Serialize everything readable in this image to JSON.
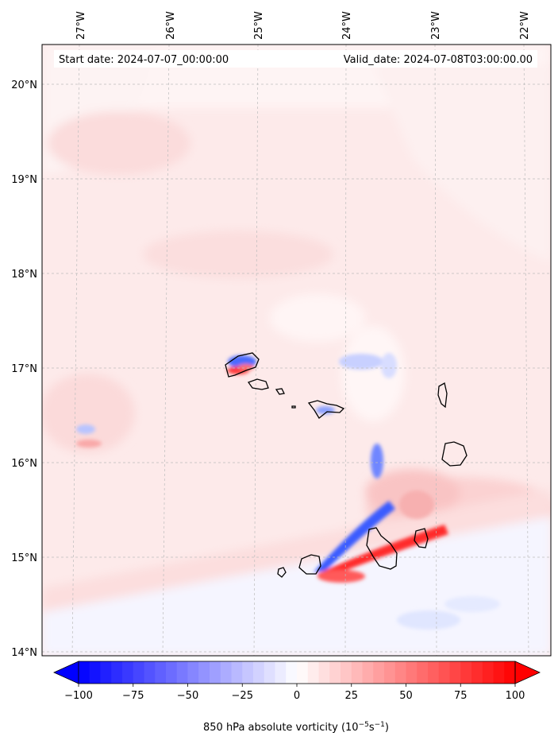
{
  "map": {
    "start_date_text": "Start date: 2024-07-07_00:00:00",
    "valid_date_text": "Valid_date: 2024-07-08T03:00:00.00",
    "lon_ticks": [
      "27°W",
      "26°W",
      "25°W",
      "24°W",
      "23°W",
      "22°W"
    ],
    "lat_ticks": [
      "20°N",
      "19°N",
      "18°N",
      "17°N",
      "16°N",
      "15°N",
      "14°N"
    ],
    "lon_range": [
      -27.35,
      -21.9
    ],
    "lat_range": [
      13.95,
      20.45
    ],
    "field": "850 hPa absolute vorticity",
    "gridlines": true
  },
  "colorbar": {
    "label_prefix": "850 hPa absolute vorticity (10",
    "label_exp1": "−5",
    "label_mid": "s",
    "label_exp2": "−1",
    "label_suffix": ")",
    "ticks": [
      "−100",
      "−75",
      "−50",
      "−25",
      "0",
      "25",
      "50",
      "75",
      "100"
    ],
    "tick_values": [
      -100,
      -75,
      -50,
      -25,
      0,
      25,
      50,
      75,
      100
    ],
    "min": -100,
    "max": 100,
    "extend": "both",
    "colormap": "bwr",
    "low_color": "#0000ff",
    "mid_color": "#ffffff",
    "high_color": "#ff0000"
  }
}
